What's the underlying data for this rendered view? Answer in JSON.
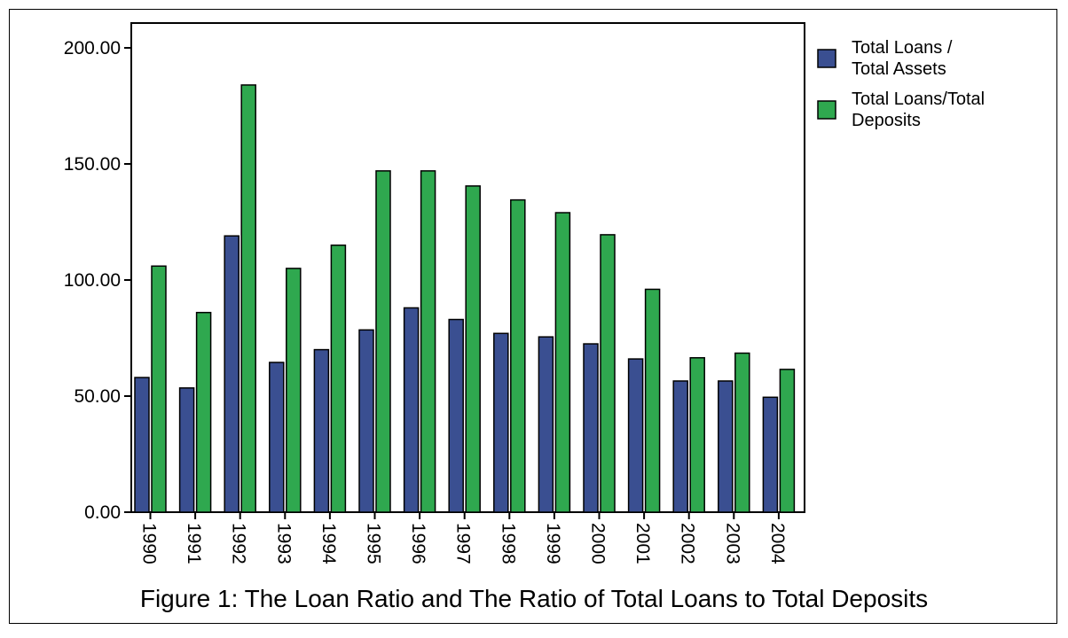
{
  "caption": "Figure 1: The Loan Ratio and The Ratio of Total Loans to Total Deposits",
  "chart_data": {
    "type": "bar",
    "title": "",
    "xlabel": "",
    "ylabel": "",
    "ylim": [
      0,
      200
    ],
    "yticks": [
      "0.00",
      "50.00",
      "100.00",
      "150.00",
      "200.00"
    ],
    "categories": [
      "1990",
      "1991",
      "1992",
      "1993",
      "1994",
      "1995",
      "1996",
      "1997",
      "1998",
      "1999",
      "2000",
      "2001",
      "2002",
      "2003",
      "2004"
    ],
    "series": [
      {
        "name": "Total Loans / Total Assets",
        "legend_lines": [
          "Total Loans /",
          "Total Assets"
        ],
        "color": "#3a4f91",
        "values": [
          58,
          53.5,
          119,
          64.5,
          70,
          78.5,
          88,
          83,
          77,
          75.5,
          72.5,
          66,
          56.5,
          56.5,
          49.5
        ]
      },
      {
        "name": "Total Loans/Total Deposits",
        "legend_lines": [
          "Total Loans/Total",
          "Deposits"
        ],
        "color": "#2fa84f",
        "values": [
          106,
          86,
          184,
          105,
          115,
          147,
          147,
          140.5,
          134.5,
          129,
          119.5,
          96,
          66.5,
          68.5,
          61.5
        ]
      }
    ],
    "grid": false,
    "legend": "right"
  }
}
